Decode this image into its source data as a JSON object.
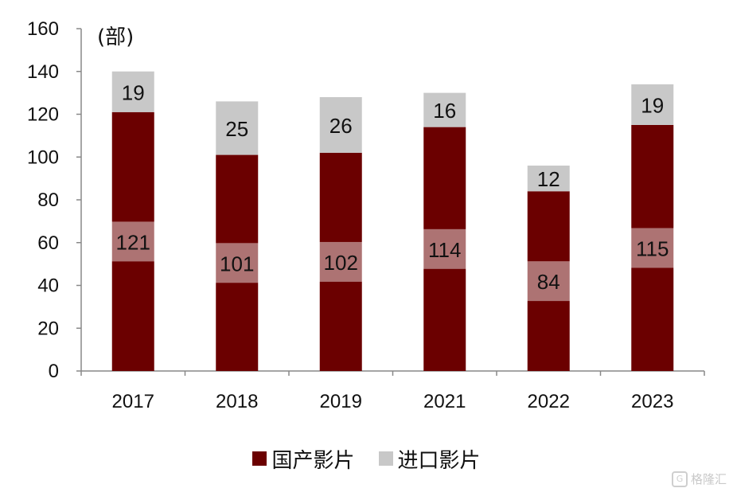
{
  "chart_data": {
    "type": "bar",
    "stacked": true,
    "unit_label": "(部)",
    "categories": [
      "2017",
      "2018",
      "2019",
      "2021",
      "2022",
      "2023"
    ],
    "series": [
      {
        "name": "国产影片",
        "color": "#6b0000",
        "values": [
          121,
          101,
          102,
          114,
          84,
          115
        ]
      },
      {
        "name": "进口影片",
        "color": "#c8c8c8",
        "values": [
          19,
          25,
          26,
          16,
          12,
          19
        ]
      }
    ],
    "ylim": [
      0,
      160
    ],
    "yticks": [
      0,
      20,
      40,
      60,
      80,
      100,
      120,
      140,
      160
    ],
    "grid": false,
    "legend_position": "bottom"
  },
  "watermark": {
    "icon": "gelonghui-logo-icon",
    "text": "格隆汇"
  }
}
